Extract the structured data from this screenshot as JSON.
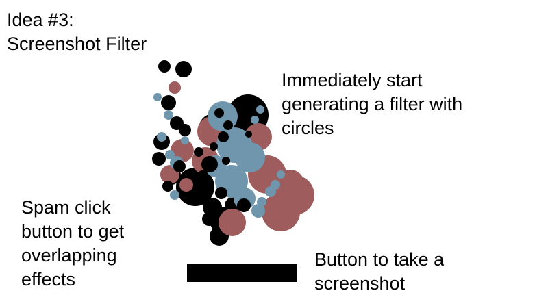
{
  "title": {
    "line1": "Idea #3:",
    "line2": "Screenshot Filter"
  },
  "annotations": {
    "filter_note": [
      "Immediately start",
      "generating a filter with",
      "circles"
    ],
    "spam_note": [
      "Spam click",
      "button to get",
      "overlapping",
      "effects"
    ],
    "button_note": [
      "Button to take a",
      "screenshot"
    ]
  },
  "colors": {
    "background": "#ffffff",
    "text": "#000000",
    "button": "#000000",
    "circle_black": "#000000",
    "circle_red": "#9e5c5c",
    "circle_blue": "#6f96ad"
  },
  "icons": {
    "filter_illustration": "circle-cluster-icon"
  }
}
